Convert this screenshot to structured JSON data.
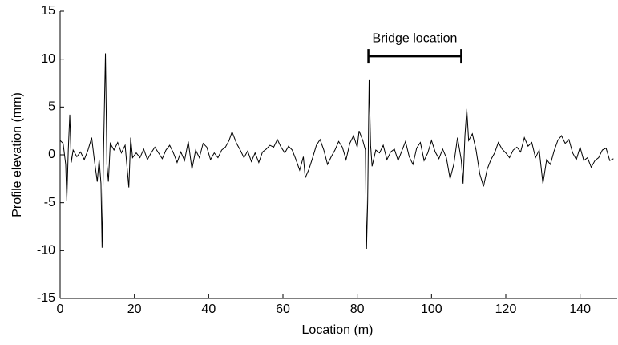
{
  "chart_data": {
    "type": "line",
    "xlabel": "Location (m)",
    "ylabel": "Profile elevation (mm)",
    "xlim": [
      0,
      150
    ],
    "ylim": [
      -15,
      15
    ],
    "xticks": [
      0,
      20,
      40,
      60,
      80,
      100,
      120,
      140
    ],
    "yticks": [
      -15,
      -10,
      -5,
      0,
      5,
      10,
      15
    ],
    "color": "#000000",
    "annotation": {
      "text": "Bridge location",
      "x": [
        83,
        108
      ],
      "y": 10.3
    },
    "x": [
      0,
      0.8,
      1.5,
      1.8,
      2.2,
      2.6,
      3,
      3.5,
      4.5,
      5.5,
      6.5,
      7.5,
      8.5,
      9.2,
      10,
      10.5,
      11,
      11.3,
      11.7,
      12.2,
      12.6,
      13,
      13.5,
      14.5,
      15.5,
      16.5,
      17.5,
      18.5,
      19,
      19.5,
      20.5,
      21.5,
      22.5,
      23.5,
      24.5,
      25.5,
      26.5,
      27.5,
      28.5,
      29.5,
      30.5,
      31.5,
      32.5,
      33.5,
      34.5,
      35.5,
      36.5,
      37.5,
      38.5,
      39.5,
      40.5,
      41.5,
      42.5,
      43.5,
      44.5,
      45.5,
      46.3,
      47.5,
      48.5,
      49.5,
      50.5,
      51.5,
      52.5,
      53.5,
      54.5,
      55.5,
      56.5,
      57.5,
      58.5,
      59.5,
      60.5,
      61.5,
      62.5,
      63.5,
      64.5,
      65.5,
      66,
      67,
      68,
      69,
      70,
      71,
      72,
      73,
      74,
      75,
      76,
      77,
      78,
      79,
      80,
      80.5,
      81.5,
      82.2,
      82.5,
      82.8,
      83.2,
      83.6,
      84,
      85,
      86,
      87,
      88,
      89,
      90,
      91,
      92,
      93,
      94,
      95,
      96,
      97,
      98,
      99,
      100,
      101,
      102,
      103,
      104,
      105,
      106,
      107,
      108,
      108.5,
      109,
      109.5,
      110,
      111,
      112,
      113,
      114,
      115,
      116,
      117,
      118,
      119,
      120,
      121,
      122,
      123,
      124,
      125,
      126,
      127,
      128,
      129,
      130,
      131,
      132,
      133,
      134,
      135,
      136,
      137,
      138,
      139,
      140,
      141,
      142,
      143,
      144,
      145,
      146,
      147,
      148,
      149
    ],
    "values": [
      1.5,
      1.2,
      -1,
      -4.8,
      0.5,
      4.2,
      -0.8,
      0.5,
      -0.2,
      0.3,
      -0.5,
      0.5,
      1.8,
      -0.5,
      -2.8,
      -0.5,
      -3,
      -9.7,
      0.5,
      10.6,
      -1,
      -2.8,
      1.2,
      0.5,
      1.3,
      0.2,
      1,
      -3.4,
      1.8,
      -0.3,
      0.2,
      -0.3,
      0.6,
      -0.5,
      0.2,
      0.8,
      0.2,
      -0.4,
      0.5,
      1,
      0.2,
      -0.8,
      0.3,
      -0.6,
      1.4,
      -1.5,
      0.5,
      -0.3,
      1.2,
      0.8,
      -0.5,
      0.2,
      -0.3,
      0.5,
      0.8,
      1.5,
      2.4,
      1.2,
      0.5,
      -0.3,
      0.4,
      -0.7,
      0.2,
      -0.8,
      0.3,
      0.6,
      1,
      0.8,
      1.6,
      0.8,
      0.2,
      0.9,
      0.5,
      -0.5,
      -1.6,
      -0.2,
      -2.4,
      -1.5,
      -0.3,
      1,
      1.6,
      0.5,
      -1,
      -0.2,
      0.5,
      1.4,
      0.8,
      -0.5,
      1.2,
      2,
      0.8,
      2.5,
      1.5,
      0.5,
      -9.8,
      -5,
      7.8,
      1,
      -1.2,
      0.5,
      0.2,
      1,
      -0.5,
      0.3,
      0.6,
      -0.6,
      0.4,
      1.4,
      -0.2,
      -1,
      0.7,
      1.3,
      -0.6,
      0.2,
      1.5,
      0.3,
      -0.4,
      0.6,
      -0.3,
      -2.5,
      -1,
      1.8,
      -0.5,
      -3,
      2,
      4.8,
      1.5,
      2.2,
      0.5,
      -2,
      -3.3,
      -1.5,
      -0.5,
      0.2,
      1.3,
      0.6,
      0.2,
      -0.3,
      0.5,
      0.8,
      0.3,
      1.8,
      0.9,
      1.3,
      -0.3,
      0.5,
      -3,
      -0.5,
      -1,
      0.4,
      1.5,
      2,
      1.2,
      1.6,
      0.2,
      -0.5,
      0.8,
      -0.6,
      -0.3,
      -1.3,
      -0.6,
      -0.3,
      0.5,
      0.7,
      -0.6,
      -0.4
    ]
  }
}
